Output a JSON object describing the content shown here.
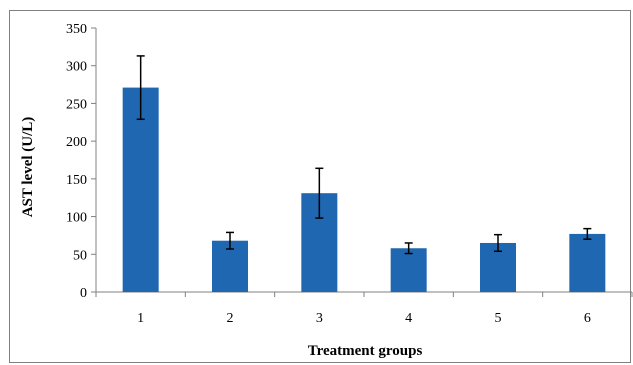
{
  "chart_data": {
    "type": "bar",
    "title": "",
    "xlabel": "Treatment groups",
    "ylabel": "AST level (U/L)",
    "categories": [
      "1",
      "2",
      "3",
      "4",
      "5",
      "6"
    ],
    "values": [
      271,
      68,
      131,
      58,
      65,
      77
    ],
    "errors": [
      42,
      11,
      33,
      7,
      11,
      7
    ],
    "ylim": [
      0,
      350
    ],
    "yticks": [
      "0",
      "50",
      "100",
      "150",
      "200",
      "250",
      "300",
      "350"
    ],
    "grid": false,
    "legend": "none",
    "bar_color": "#1f67b1"
  }
}
